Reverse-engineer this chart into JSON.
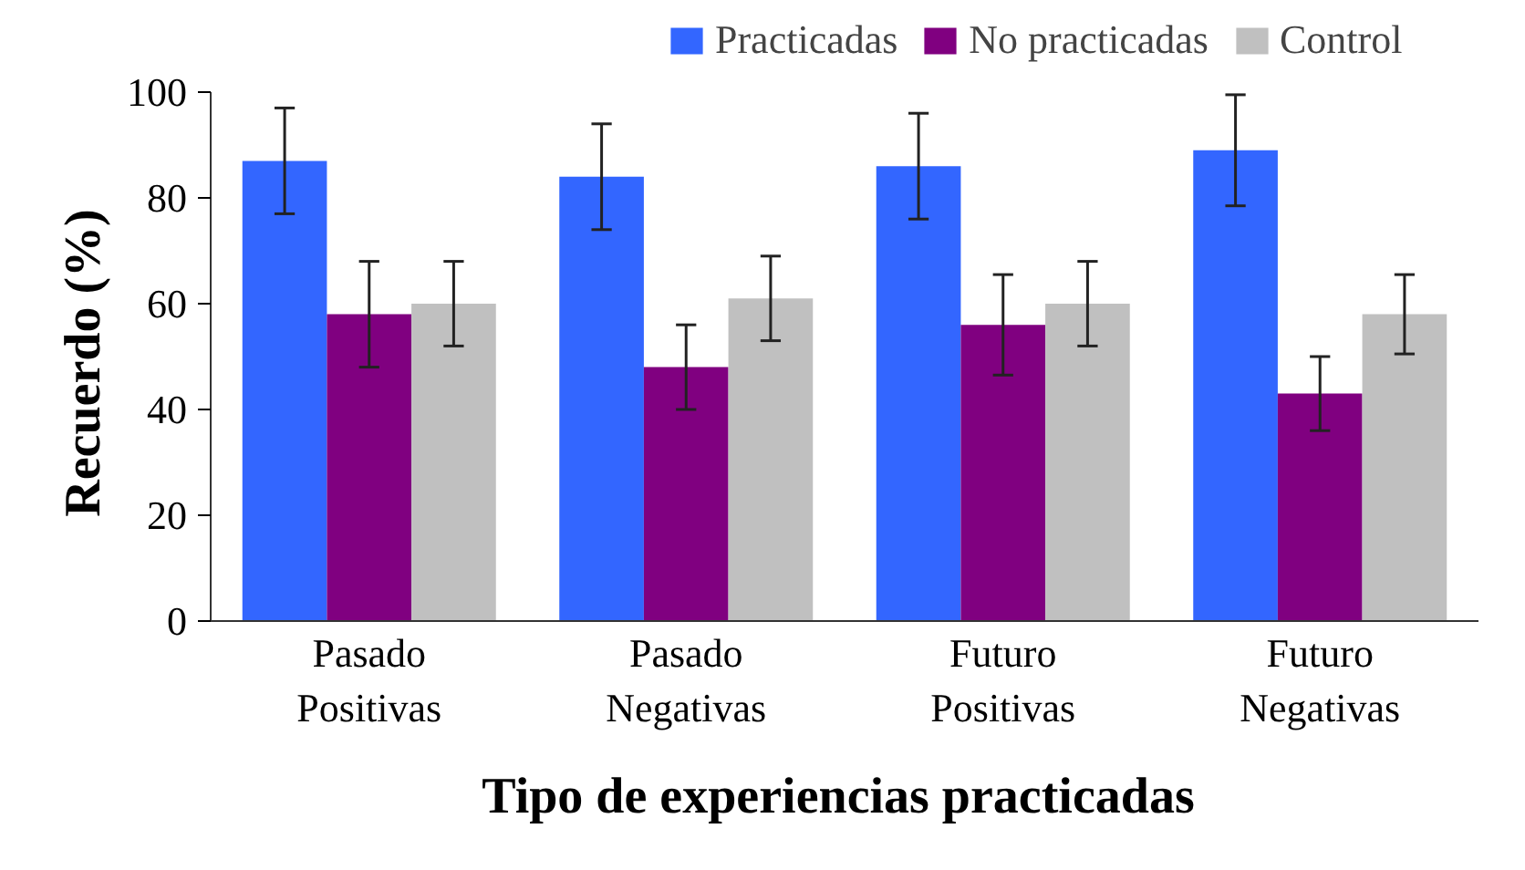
{
  "chart_data": {
    "type": "bar",
    "xlabel": "Tipo de experiencias  practicadas",
    "ylabel": "Recuerdo  (%)",
    "categories": [
      "Pasado Positivas",
      "Pasado Negativas",
      "Futuro Positivas",
      "Futuro Negativas"
    ],
    "series": [
      {
        "name": "Practicadas",
        "color": "#3366ff",
        "values": [
          87,
          84,
          86,
          89
        ],
        "errors": [
          10,
          10,
          10,
          10.5
        ]
      },
      {
        "name": "No practicadas",
        "color": "#800080",
        "values": [
          58,
          48,
          56,
          43
        ],
        "errors": [
          10,
          8,
          9.5,
          7
        ]
      },
      {
        "name": "Control",
        "color": "#c0c0c0",
        "values": [
          60,
          61,
          60,
          58
        ],
        "errors": [
          8,
          8,
          8,
          7.5
        ]
      }
    ],
    "ylim": [
      0,
      100
    ],
    "yticks": [
      0,
      20,
      40,
      60,
      80,
      100
    ],
    "grid": false,
    "legend": "top"
  }
}
